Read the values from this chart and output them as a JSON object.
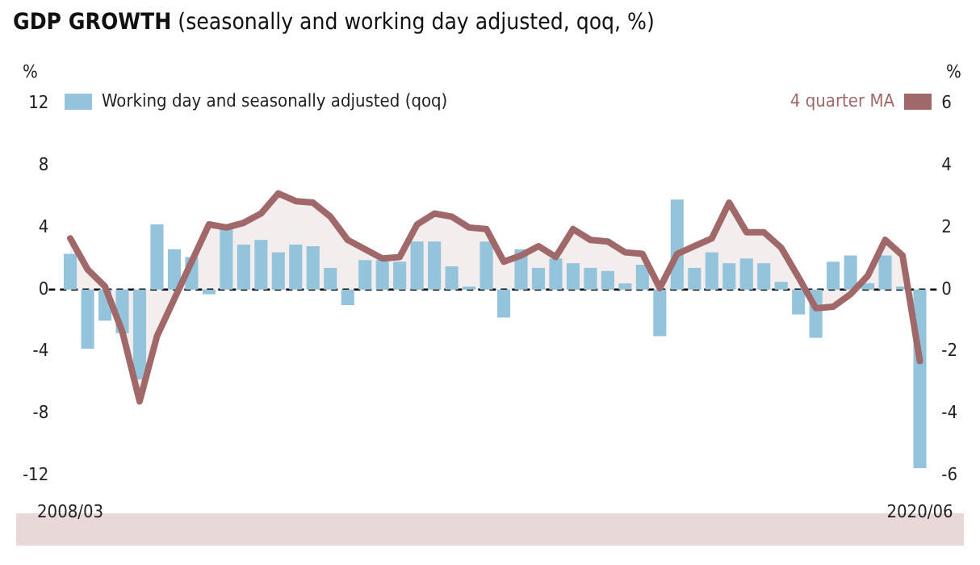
{
  "chart_data": {
    "type": "bar",
    "title": "GDP GROWTH",
    "subtitle": "(seasonally and working day adjusted, qoq, %)",
    "ylabel": "%",
    "y2label": "%",
    "categories": [
      "2008/03",
      null,
      null,
      null,
      null,
      null,
      null,
      null,
      null,
      null,
      null,
      null,
      null,
      null,
      null,
      null,
      null,
      null,
      null,
      null,
      null,
      null,
      null,
      null,
      null,
      null,
      null,
      null,
      null,
      null,
      null,
      null,
      null,
      null,
      null,
      null,
      null,
      null,
      null,
      null,
      null,
      null,
      null,
      null,
      null,
      null,
      null,
      null,
      null,
      "2020/06"
    ],
    "series": [
      {
        "name": "Working day and seasonally adjusted (qoq)",
        "color": "#93c4dc",
        "values": [
          2.3,
          -3.8,
          -2.0,
          -2.8,
          -5.8,
          4.2,
          2.6,
          2.1,
          -0.3,
          4.0,
          2.9,
          3.2,
          2.4,
          2.9,
          2.8,
          1.4,
          -1.0,
          1.9,
          1.9,
          1.8,
          3.1,
          3.1,
          1.5,
          0.2,
          3.1,
          -1.8,
          2.6,
          1.4,
          2.0,
          1.7,
          1.4,
          1.2,
          0.4,
          1.6,
          -3.0,
          5.8,
          1.4,
          2.4,
          1.7,
          2.0,
          1.7,
          0.5,
          -1.6,
          -3.1,
          1.8,
          2.2,
          0.4,
          2.2,
          0.2,
          -11.5
        ]
      },
      {
        "name": "4 quarter MA",
        "type": "area",
        "axis": "y2",
        "color": "#a06868",
        "values": [
          1.65,
          0.65,
          0.1,
          -1.35,
          -3.6,
          -1.5,
          -0.3,
          0.9,
          2.1,
          2.0,
          2.15,
          2.45,
          3.1,
          2.85,
          2.8,
          2.35,
          1.6,
          1.3,
          1.0,
          1.05,
          2.1,
          2.45,
          2.35,
          2.0,
          1.95,
          0.9,
          1.1,
          1.4,
          1.05,
          1.95,
          1.6,
          1.55,
          1.2,
          1.15,
          0.05,
          1.15,
          1.4,
          1.65,
          2.8,
          1.85,
          1.85,
          1.35,
          0.4,
          -0.6,
          -0.55,
          -0.15,
          0.45,
          1.6,
          1.1,
          -2.3
        ]
      }
    ],
    "ylim": [
      -12,
      12
    ],
    "yticks": [
      -12,
      -8,
      -4,
      0,
      4,
      8,
      12
    ],
    "y2lim": [
      -6,
      6
    ],
    "y2ticks": [
      -6,
      -4,
      -2,
      0,
      2,
      4,
      6
    ],
    "ref_lines": [
      {
        "axis": "y",
        "value": 0,
        "color": "#000000",
        "line_style": "dashed"
      }
    ],
    "grid": false,
    "legend": "top",
    "marker": "none",
    "line_style": "solid"
  }
}
